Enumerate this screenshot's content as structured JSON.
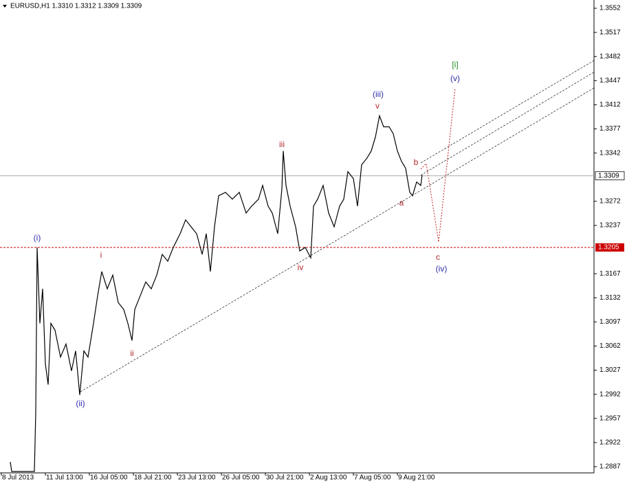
{
  "chart_data": {
    "type": "line",
    "title": "EURUSD,H1  1.3310 1.3312 1.3309 1.3309",
    "x": [
      15,
      17,
      50,
      52,
      54,
      58,
      62,
      66,
      70,
      74,
      80,
      88,
      96,
      104,
      110,
      116,
      122,
      128,
      136,
      142,
      148,
      156,
      164,
      172,
      180,
      186,
      192,
      196,
      204,
      212,
      220,
      228,
      236,
      244,
      252,
      262,
      270,
      278,
      286,
      294,
      300,
      306,
      312,
      318,
      328,
      338,
      348,
      358,
      366,
      376,
      382,
      390,
      396,
      404,
      410,
      412,
      416,
      422,
      430,
      436,
      444,
      452,
      456,
      462,
      470,
      478,
      486,
      494,
      500,
      506,
      514,
      520,
      526,
      534,
      540,
      546,
      552,
      558,
      566,
      572,
      578,
      584,
      590,
      596,
      600,
      606,
      612,
      614
    ],
    "values": [
      1.2894,
      1.288,
      1.288,
      1.2966,
      1.3205,
      1.3095,
      1.3145,
      1.3036,
      1.3006,
      1.3095,
      1.3085,
      1.3046,
      1.3065,
      1.3026,
      1.3055,
      1.2991,
      1.3055,
      1.3046,
      1.3095,
      1.3135,
      1.317,
      1.3145,
      1.3165,
      1.3125,
      1.3115,
      1.3095,
      1.307,
      1.3115,
      1.3135,
      1.3155,
      1.3145,
      1.3165,
      1.3195,
      1.3185,
      1.3205,
      1.3225,
      1.3245,
      1.3235,
      1.3225,
      1.3195,
      1.3225,
      1.317,
      1.3235,
      1.328,
      1.3285,
      1.3275,
      1.3285,
      1.3255,
      1.3265,
      1.3275,
      1.3295,
      1.3265,
      1.3255,
      1.3225,
      1.329,
      1.3345,
      1.3295,
      1.3265,
      1.3235,
      1.32,
      1.3205,
      1.319,
      1.3265,
      1.3275,
      1.3295,
      1.3255,
      1.3235,
      1.3265,
      1.3275,
      1.3315,
      1.3305,
      1.3265,
      1.3325,
      1.3335,
      1.3345,
      1.3365,
      1.3396,
      1.338,
      1.338,
      1.337,
      1.3345,
      1.333,
      1.332,
      1.3285,
      1.328,
      1.33,
      1.3295,
      1.331
    ],
    "color": "#000000",
    "xlim": [
      0,
      864
    ],
    "ylim": [
      1.2878,
      1.3564
    ],
    "xticks": [
      {
        "value": 2,
        "label": "8 Jul 2013"
      },
      {
        "value": 66,
        "label": "11 Jul 13:00"
      },
      {
        "value": 130,
        "label": "16 Jul 05:00"
      },
      {
        "value": 194,
        "label": "18 Jul 21:00"
      },
      {
        "value": 258,
        "label": "23 Jul 13:00"
      },
      {
        "value": 322,
        "label": "26 Jul 05:00"
      },
      {
        "value": 386,
        "label": "30 Jul 21:00"
      },
      {
        "value": 450,
        "label": "2 Aug 13:00"
      },
      {
        "value": 514,
        "label": "7 Aug 05:00"
      },
      {
        "value": 578,
        "label": "9 Aug 21:00"
      }
    ],
    "yticks": [
      1.3552,
      1.3517,
      1.3482,
      1.3447,
      1.3412,
      1.3377,
      1.3342,
      1.3272,
      1.3237,
      1.3167,
      1.3132,
      1.3097,
      1.3062,
      1.3027,
      1.2992,
      1.2957,
      1.2922,
      1.2887
    ],
    "current_price": 1.3309,
    "level": 1.3205,
    "annotations": [
      {
        "text": "(i)",
        "color": "#2c2ca8"
      },
      {
        "text": "i",
        "color": "#b02828"
      },
      {
        "text": "(ii)",
        "color": "#2c2ca8"
      },
      {
        "text": "ii",
        "color": "#b02828"
      },
      {
        "text": "iii",
        "color": "#b02828"
      },
      {
        "text": "iv",
        "color": "#b02828"
      },
      {
        "text": "(iii)",
        "color": "#2c2ca8"
      },
      {
        "text": "v",
        "color": "#b02828"
      },
      {
        "text": "a",
        "color": "#b02828"
      },
      {
        "text": "b",
        "color": "#b02828"
      },
      {
        "text": "c",
        "color": "#b02828"
      },
      {
        "text": "(iv)",
        "color": "#2c2ca8"
      },
      {
        "text": "(v)",
        "color": "#2c2ca8"
      },
      {
        "text": "[i]",
        "color": "#1e8c1e"
      }
    ]
  }
}
